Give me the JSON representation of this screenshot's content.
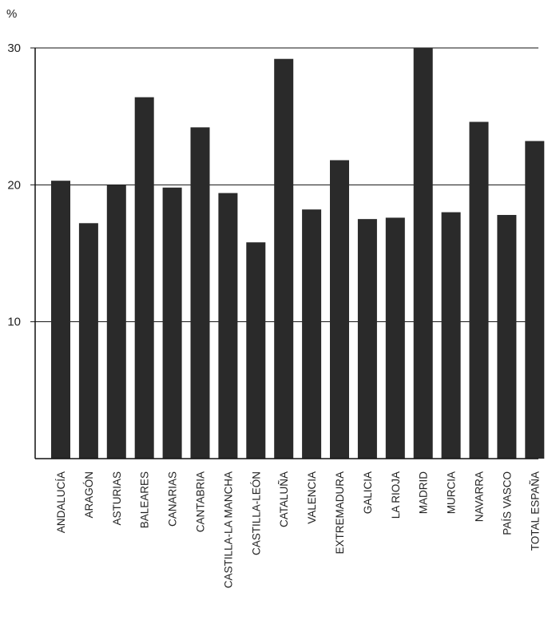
{
  "chart_data": {
    "type": "bar",
    "unit_label": "%",
    "categories": [
      "ANDALUCÍA",
      "ARAGÓN",
      "ASTURIAS",
      "BALEARES",
      "CANARIAS",
      "CANTABRIA",
      "CASTILLA-LA MANCHA",
      "CASTILLA-LEÓN",
      "CATALUÑA",
      "VALENCIA",
      "EXTREMADURA",
      "GALICIA",
      "LA RIOJA",
      "MADRID",
      "MURCIA",
      "NAVARRA",
      "PAÍS VASCO",
      "TOTAL ESPAÑA"
    ],
    "values": [
      20.3,
      17.2,
      20.0,
      26.4,
      19.8,
      24.2,
      19.4,
      15.8,
      29.2,
      18.2,
      21.8,
      17.5,
      17.6,
      30.0,
      18.0,
      24.6,
      17.8,
      23.2
    ],
    "yticks": [
      10,
      20,
      30
    ],
    "ylim": [
      0,
      30
    ],
    "grid": true,
    "legend": "none",
    "title": "",
    "xlabel": "",
    "ylabel": "%",
    "colors": {
      "bar": "#2a2a2a",
      "axis": "#111111",
      "grid": "#111111"
    }
  }
}
